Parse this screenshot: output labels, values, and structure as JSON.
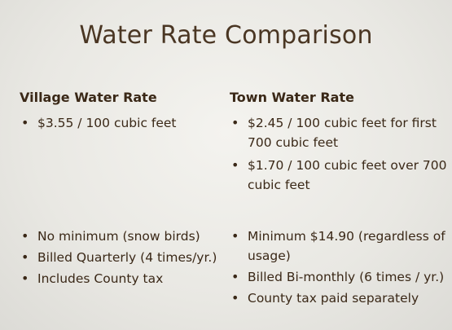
{
  "slide": {
    "title": "Water Rate Comparison",
    "village": {
      "heading": "Village Water Rate",
      "rate_items": [
        "$3.55 / 100 cubic feet"
      ],
      "detail_items": [
        "No minimum (snow birds)",
        "Billed Quarterly (4 times/yr.)",
        "Includes County tax"
      ]
    },
    "town": {
      "heading": "Town Water Rate",
      "rate_items": [
        "$2.45 /  100 cubic feet for first 700 cubic feet",
        "$1.70 / 100 cubic feet over 700 cubic feet"
      ],
      "detail_items": [
        "Minimum $14.90 (regardless of usage)",
        "Billed Bi-monthly (6 times / yr.)",
        "County tax paid separately"
      ]
    },
    "bullet_glyph": "•"
  }
}
